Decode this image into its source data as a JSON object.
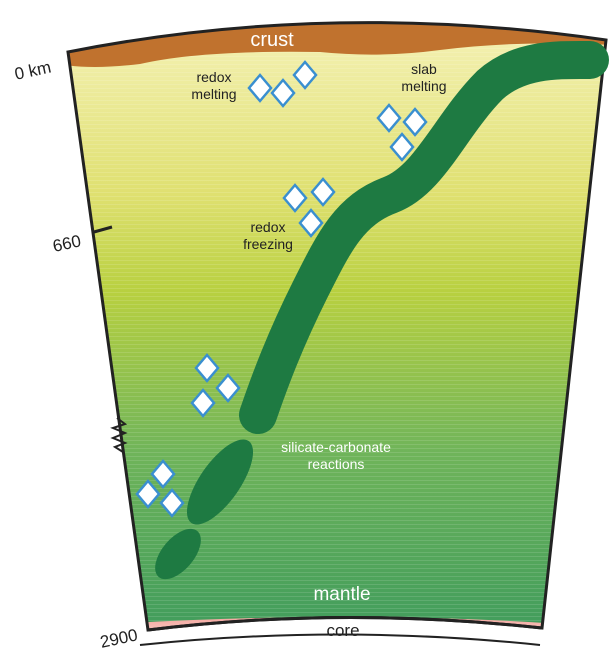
{
  "labels": {
    "crust": "crust",
    "depth_top": "0 km",
    "depth_mid": "660",
    "depth_bottom": "2900",
    "redox_melting": [
      "redox",
      "melting"
    ],
    "slab_melting": [
      "slab",
      "melting"
    ],
    "redox_freezing": [
      "redox",
      "freezing"
    ],
    "silicate_carbonate": [
      "silicate-carbonate",
      "reactions"
    ],
    "mantle": "mantle",
    "core": "core"
  }
}
